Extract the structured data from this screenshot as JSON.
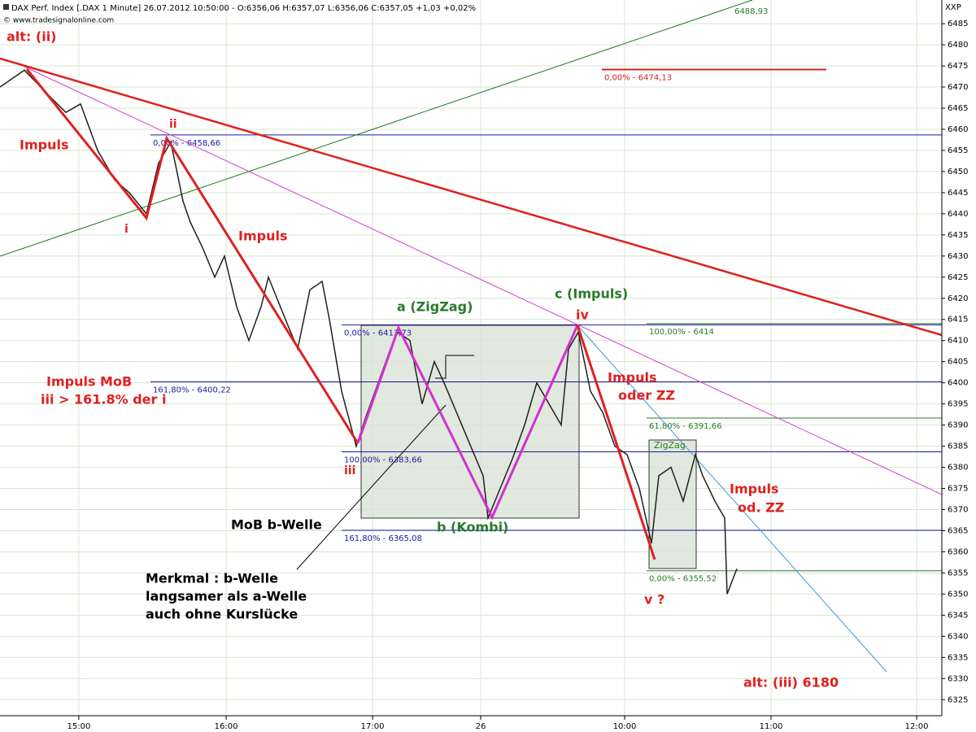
{
  "chart_data": {
    "type": "line",
    "title": "DAX Perf. Index [.DAX 1 Minute] 26.07.2012 10:50:00 - O:6356,06 H:6357,07 L:6356,06 C:6357,05 +1,03 +0,02%",
    "source": "© www.tradesignalonline.com",
    "y_axis_label": "XXP",
    "color": "#202020",
    "x": [
      0,
      10,
      20,
      27,
      33,
      40,
      47,
      53,
      60,
      65,
      70,
      75,
      78,
      83,
      88,
      92,
      97,
      102,
      107,
      110,
      117,
      122,
      127,
      132,
      135,
      140,
      146,
      150,
      155,
      160,
      163,
      168,
      173,
      178,
      182,
      198,
      200,
      205,
      210,
      215,
      220,
      225,
      230,
      233,
      237,
      242,
      247,
      252,
      257,
      262,
      267,
      270,
      275,
      280,
      285,
      288,
      293,
      297,
      298,
      302
    ],
    "values": [
      6470,
      6474,
      6468,
      6464,
      6466,
      6455,
      6448,
      6445,
      6440,
      6452,
      6457,
      6443,
      6438,
      6432,
      6425,
      6430,
      6418,
      6410,
      6418,
      6425,
      6415,
      6408,
      6422,
      6424,
      6415,
      6398,
      6385,
      6392,
      6400,
      6408,
      6412,
      6410,
      6395,
      6405,
      6400,
      6378,
      6368,
      6375,
      6382,
      6390,
      6400,
      6395,
      6390,
      6408,
      6412,
      6398,
      6393,
      6385,
      6383,
      6375,
      6362,
      6378,
      6380,
      6372,
      6383,
      6378,
      6372,
      6368,
      6350,
      6356
    ],
    "xlim": [
      0,
      386
    ],
    "xticks": [
      {
        "value": 32.3,
        "label": "15:00"
      },
      {
        "value": 92.7,
        "label": "16:00"
      },
      {
        "value": 152.7,
        "label": "17:00"
      },
      {
        "value": 197,
        "label": "26"
      },
      {
        "value": 256,
        "label": "10:00"
      },
      {
        "value": 316,
        "label": "11:00"
      },
      {
        "value": 375.7,
        "label": "12:00"
      }
    ],
    "ylim": [
      6321.2,
      6490.6
    ],
    "yticks": [
      6325,
      6330,
      6335,
      6340,
      6345,
      6350,
      6355,
      6360,
      6365,
      6370,
      6375,
      6380,
      6385,
      6390,
      6395,
      6400,
      6405,
      6410,
      6415,
      6420,
      6425,
      6430,
      6435,
      6440,
      6445,
      6450,
      6455,
      6460,
      6465,
      6470,
      6475,
      6480,
      6485
    ],
    "grid": true,
    "levels": [
      {
        "value": 6458.66,
        "label": "0,00% - 6458,66",
        "color": "#1a1aa0"
      },
      {
        "value": 6413.73,
        "label": "0,00% - 6413,73",
        "color": "#1a1aa0"
      },
      {
        "value": 6400.22,
        "label": "161,80% - 6400,22",
        "color": "#1a1aa0"
      },
      {
        "value": 6383.66,
        "label": "100,00% - 6383,66",
        "color": "#1a1aa0"
      },
      {
        "value": 6365.08,
        "label": "161,80% - 6365,08",
        "color": "#1a1aa0"
      },
      {
        "value": 6414,
        "label": "100,00% - 6414",
        "color": "#2a7a2a"
      },
      {
        "value": 6391.66,
        "label": "61,80% - 6391,66",
        "color": "#2a7a2a"
      },
      {
        "value": 6355.52,
        "label": "0,00% - 6355,52",
        "color": "#2a7a2a"
      },
      {
        "value": 6474.13,
        "label": "0,00% - 6474,13",
        "color": "#d02020"
      }
    ],
    "annotations": [
      {
        "text": "alt: (ii)",
        "color": "#e02020"
      },
      {
        "text": "Impuls",
        "color": "#e02020"
      },
      {
        "text": "ii",
        "color": "#e02020"
      },
      {
        "text": "i",
        "color": "#e02020"
      },
      {
        "text": "Impuls",
        "color": "#e02020"
      },
      {
        "text": "Impuls MoB",
        "color": "#e02020"
      },
      {
        "text": "iii > 161.8% der i",
        "color": "#e02020"
      },
      {
        "text": "iii",
        "color": "#e02020"
      },
      {
        "text": "a (ZigZag)",
        "color": "#2a7a2a"
      },
      {
        "text": "c (Impuls)",
        "color": "#2a7a2a"
      },
      {
        "text": "iv",
        "color": "#e02020"
      },
      {
        "text": "Impuls",
        "color": "#e02020"
      },
      {
        "text": "oder ZZ",
        "color": "#e02020"
      },
      {
        "text": "b (Kombi)",
        "color": "#2a7a2a"
      },
      {
        "text": "MoB b-Welle",
        "color": "#000000"
      },
      {
        "text": "Merkmal : b-Welle",
        "color": "#000000"
      },
      {
        "text": "langsamer als a-Welle",
        "color": "#000000"
      },
      {
        "text": "auch ohne Kurslücke",
        "color": "#000000"
      },
      {
        "text": "ZigZag",
        "color": "#2a7a2a"
      },
      {
        "text": "Impuls",
        "color": "#e02020"
      },
      {
        "text": "od. ZZ",
        "color": "#e02020"
      },
      {
        "text": "v ?",
        "color": "#e02020"
      },
      {
        "text": "alt: (iii) 6180",
        "color": "#e02020"
      },
      {
        "text": "6488,93",
        "color": "#2a7a2a"
      }
    ]
  }
}
